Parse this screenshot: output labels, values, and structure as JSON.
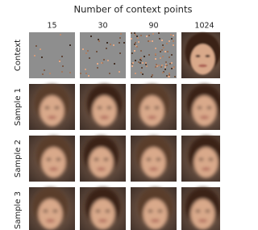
{
  "figure": {
    "title": "Number of context points",
    "columns": [
      "15",
      "30",
      "90",
      "1024"
    ],
    "rows": [
      "Context",
      "Sample 1",
      "Sample 2",
      "Sample 3"
    ]
  }
}
